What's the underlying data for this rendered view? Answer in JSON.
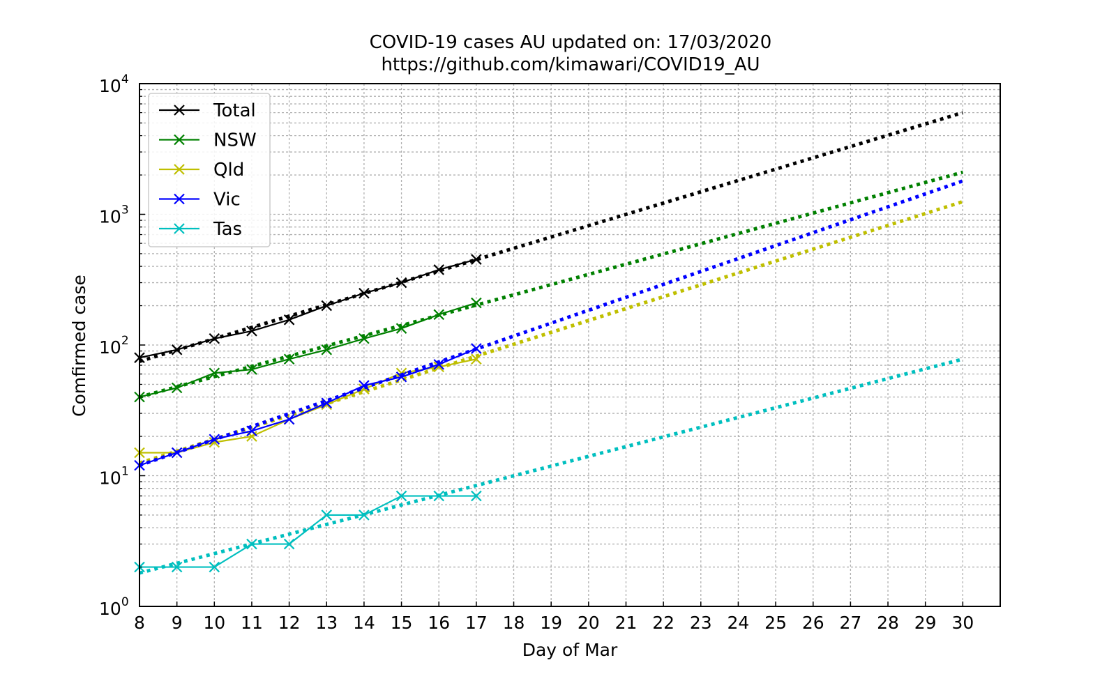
{
  "chart_data": {
    "type": "line",
    "title": [
      "COVID-19 cases AU updated on: 17/03/2020",
      "https://github.com/kimawari/COVID19_AU"
    ],
    "xlabel": "Day of Mar",
    "ylabel": "Comfirmed case",
    "yscale": "log",
    "xlim": [
      8,
      31
    ],
    "ylim": [
      1,
      10000
    ],
    "xticks": [
      "8",
      "9",
      "10",
      "11",
      "12",
      "13",
      "14",
      "15",
      "16",
      "17",
      "18",
      "19",
      "20",
      "21",
      "22",
      "23",
      "24",
      "25",
      "26",
      "27",
      "28",
      "29",
      "30"
    ],
    "yticks": [
      {
        "base": "10",
        "exp": "0",
        "value": 1
      },
      {
        "base": "10",
        "exp": "1",
        "value": 10
      },
      {
        "base": "10",
        "exp": "2",
        "value": 100
      },
      {
        "base": "10",
        "exp": "3",
        "value": 1000
      },
      {
        "base": "10",
        "exp": "4",
        "value": 10000
      }
    ],
    "grid": true,
    "legend_position": "top-left",
    "series": [
      {
        "name": "Total",
        "color": "#000000",
        "x": [
          8,
          9,
          10,
          11,
          12,
          13,
          14,
          15,
          16,
          17
        ],
        "values": [
          80,
          92,
          112,
          128,
          156,
          200,
          249,
          300,
          377,
          452
        ],
        "trend": {
          "x0": 8,
          "y0": 75,
          "x1": 30,
          "y1": 6000
        }
      },
      {
        "name": "NSW",
        "color": "#008000",
        "x": [
          8,
          9,
          10,
          11,
          12,
          13,
          14,
          15,
          16,
          17
        ],
        "values": [
          40,
          47,
          61,
          65,
          78,
          92,
          112,
          134,
          171,
          210
        ],
        "trend": {
          "x0": 8,
          "y0": 40,
          "x1": 30,
          "y1": 2100
        }
      },
      {
        "name": "Qld",
        "color": "#bfbf00",
        "x": [
          8,
          9,
          10,
          11,
          12,
          13,
          14,
          15,
          16,
          17
        ],
        "values": [
          15,
          15,
          18,
          20,
          27,
          35,
          46,
          61,
          68,
          78
        ],
        "trend": {
          "x0": 8,
          "y0": 12.5,
          "x1": 30,
          "y1": 1250
        }
      },
      {
        "name": "Vic",
        "color": "#0000ff",
        "x": [
          8,
          9,
          10,
          11,
          12,
          13,
          14,
          15,
          16,
          17
        ],
        "values": [
          12,
          15,
          19,
          22,
          27,
          36,
          49,
          57,
          71,
          94
        ],
        "trend": {
          "x0": 8,
          "y0": 12,
          "x1": 30,
          "y1": 1800
        }
      },
      {
        "name": "Tas",
        "color": "#00bfbf",
        "x": [
          8,
          9,
          10,
          11,
          12,
          13,
          14,
          15,
          16,
          17
        ],
        "values": [
          2,
          2,
          2,
          3,
          3,
          5,
          5,
          7,
          7,
          7
        ],
        "trend": {
          "x0": 8,
          "y0": 1.8,
          "x1": 30,
          "y1": 78
        }
      }
    ]
  }
}
